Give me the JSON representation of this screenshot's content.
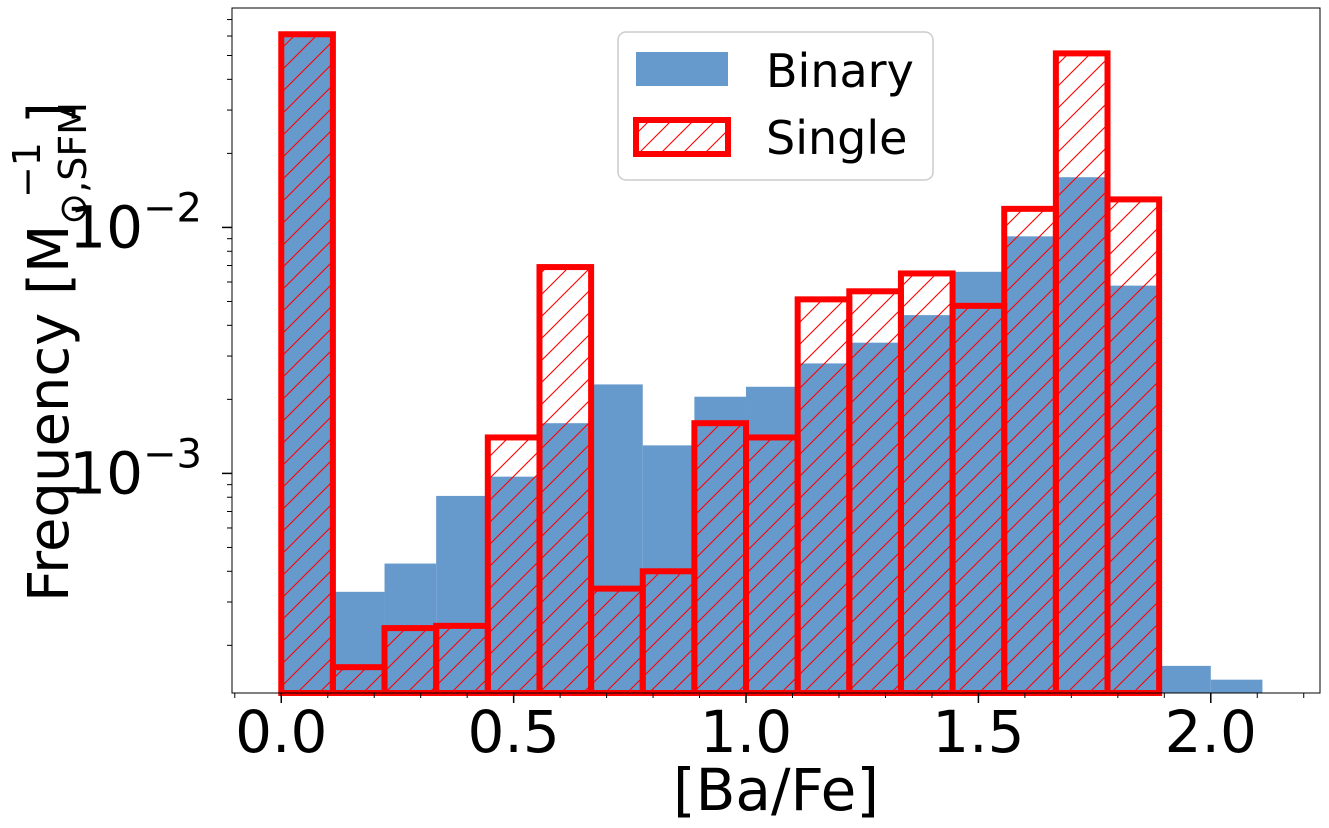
{
  "chart_data": {
    "type": "bar",
    "xlabel": "[Ba/Fe]",
    "ylabel": "Frequency [M",
    "ylabel_sub": "⊙,SFM",
    "ylabel_sup": "−1",
    "ylabel_close": "]",
    "yscale": "log",
    "xlim": [
      -0.106,
      2.235
    ],
    "ylim": [
      0.000128,
      0.078
    ],
    "x_ticks": [
      0.0,
      0.5,
      1.0,
      1.5,
      2.0
    ],
    "x_tick_labels": [
      "0.0",
      "0.5",
      "1.0",
      "1.5",
      "2.0"
    ],
    "y_ticks": [
      {
        "value": 0.01,
        "base": "10",
        "exp": "−2"
      },
      {
        "value": 0.001,
        "base": "10",
        "exp": "−3"
      }
    ],
    "bin_edges": [
      0.0,
      0.1111,
      0.2222,
      0.3333,
      0.4444,
      0.5556,
      0.6667,
      0.7778,
      0.8889,
      1.0,
      1.1111,
      1.2222,
      1.3333,
      1.4444,
      1.5556,
      1.6667,
      1.7778,
      1.8889,
      2.0,
      2.1111
    ],
    "series": [
      {
        "name": "Binary",
        "style": "filled",
        "color": "#6699CC",
        "values": [
          0.06,
          0.00033,
          0.00043,
          0.00081,
          0.00097,
          0.0016,
          0.0023,
          0.0013,
          0.00205,
          0.00225,
          0.0028,
          0.0034,
          0.0044,
          0.0066,
          0.0092,
          0.016,
          0.0058,
          0.000165,
          0.000145
        ]
      },
      {
        "name": "Single",
        "style": "hatched-outline",
        "color": "#FF0000",
        "values": [
          0.061,
          0.000163,
          0.000235,
          0.00024,
          0.0014,
          0.0069,
          0.00034,
          0.0004,
          0.0016,
          0.0014,
          0.0051,
          0.0055,
          0.0065,
          0.0048,
          0.0119,
          0.051,
          0.013,
          null,
          null
        ]
      }
    ],
    "legend": {
      "position": "top-center",
      "entries": [
        "Binary",
        "Single"
      ]
    }
  }
}
